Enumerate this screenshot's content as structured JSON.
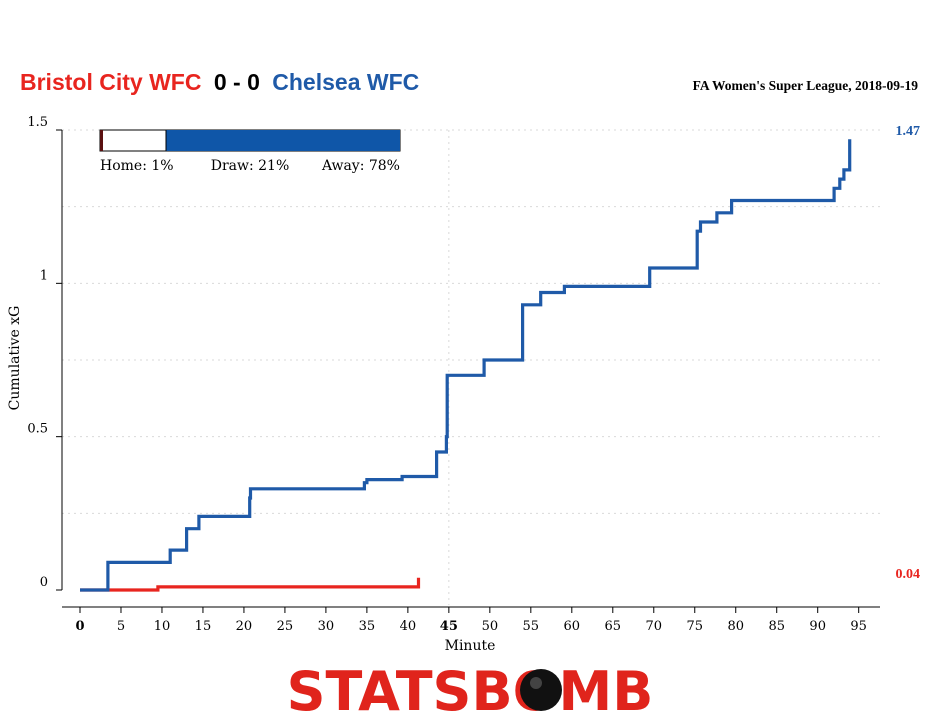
{
  "header": {
    "home_team": "Bristol City WFC",
    "score": "0 - 0",
    "away_team": "Chelsea WFC",
    "competition": "FA Women's Super League, 2018-09-19"
  },
  "probabilities": {
    "home_label": "Home: 1%",
    "draw_label": "Draw: 21%",
    "away_label": "Away: 78%",
    "home": 0.01,
    "draw": 0.21,
    "away": 0.78
  },
  "logo": {
    "text": "STATSBOMB"
  },
  "colors": {
    "home": "#e8251f",
    "away": "#1f5aa8",
    "home_bar": "#5a1010",
    "away_bar": "#0f56a8"
  },
  "chart_data": {
    "type": "line",
    "xlabel": "Minute",
    "ylabel": "Cumulative xG",
    "xlim": [
      0,
      97
    ],
    "ylim": [
      0,
      1.5
    ],
    "x_ticks": [
      "0",
      "5",
      "10",
      "15",
      "20",
      "25",
      "30",
      "35",
      "40",
      "45",
      "50",
      "55",
      "60",
      "65",
      "70",
      "75",
      "80",
      "85",
      "90",
      "95"
    ],
    "y_ticks": [
      "0",
      "0.5",
      "1",
      "1.5"
    ],
    "y_tick_values": [
      0,
      0.5,
      1,
      1.5
    ],
    "gridlines_y": [
      0.25,
      0.5,
      0.75,
      1,
      1.25,
      1.5
    ],
    "halftime_line": 45,
    "series": [
      {
        "name": "Bristol City WFC",
        "color": "#e8251f",
        "final_label": "0.04",
        "points": [
          [
            0,
            0
          ],
          [
            9.5,
            0
          ],
          [
            9.5,
            0.01
          ],
          [
            41.3,
            0.01
          ],
          [
            41.3,
            0.04
          ]
        ]
      },
      {
        "name": "Chelsea WFC",
        "color": "#1f5aa8",
        "final_label": "1.47",
        "points": [
          [
            0,
            0
          ],
          [
            3.4,
            0
          ],
          [
            3.4,
            0.09
          ],
          [
            11,
            0.09
          ],
          [
            11,
            0.13
          ],
          [
            13,
            0.13
          ],
          [
            13,
            0.2
          ],
          [
            14.5,
            0.2
          ],
          [
            14.5,
            0.24
          ],
          [
            20.7,
            0.24
          ],
          [
            20.7,
            0.3
          ],
          [
            20.8,
            0.3
          ],
          [
            20.8,
            0.33
          ],
          [
            34.7,
            0.33
          ],
          [
            34.7,
            0.35
          ],
          [
            35,
            0.35
          ],
          [
            35,
            0.36
          ],
          [
            39.3,
            0.36
          ],
          [
            39.3,
            0.37
          ],
          [
            43.5,
            0.37
          ],
          [
            43.5,
            0.45
          ],
          [
            44.7,
            0.45
          ],
          [
            44.7,
            0.5
          ],
          [
            44.8,
            0.5
          ],
          [
            44.8,
            0.7
          ],
          [
            49.3,
            0.7
          ],
          [
            49.3,
            0.75
          ],
          [
            54,
            0.75
          ],
          [
            54,
            0.93
          ],
          [
            56.2,
            0.93
          ],
          [
            56.2,
            0.97
          ],
          [
            59.1,
            0.97
          ],
          [
            59.1,
            0.99
          ],
          [
            69.5,
            0.99
          ],
          [
            69.5,
            1.05
          ],
          [
            75.3,
            1.05
          ],
          [
            75.3,
            1.17
          ],
          [
            75.7,
            1.17
          ],
          [
            75.7,
            1.2
          ],
          [
            77.7,
            1.2
          ],
          [
            77.7,
            1.23
          ],
          [
            79.5,
            1.23
          ],
          [
            79.5,
            1.27
          ],
          [
            92,
            1.27
          ],
          [
            92,
            1.31
          ],
          [
            92.7,
            1.31
          ],
          [
            92.7,
            1.34
          ],
          [
            93.2,
            1.34
          ],
          [
            93.2,
            1.37
          ],
          [
            93.9,
            1.37
          ],
          [
            93.9,
            1.47
          ]
        ]
      }
    ],
    "grid": true
  }
}
